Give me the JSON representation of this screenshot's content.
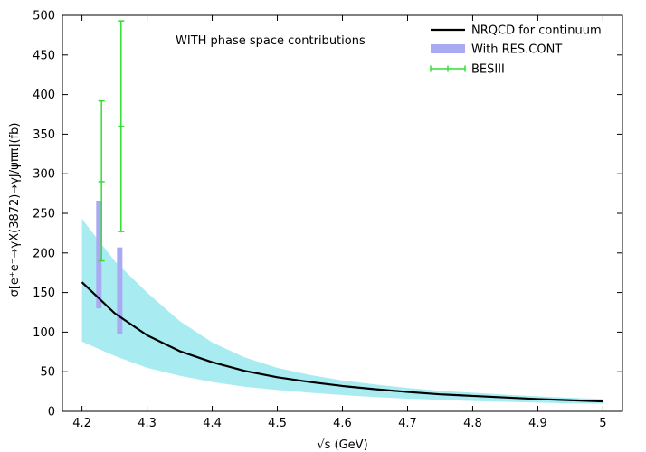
{
  "chart_data": {
    "type": "line",
    "title": "",
    "annotation": "WITH phase space contributions",
    "xlabel": "√s (GeV)",
    "ylabel": "σ[e⁺e⁻→γX(3872)→γJ/ψππ](fb)",
    "xlim": [
      4.17,
      5.03
    ],
    "ylim": [
      0,
      500
    ],
    "x_ticks": [
      4.2,
      4.3,
      4.4,
      4.5,
      4.6,
      4.7,
      4.8,
      4.9,
      5
    ],
    "x_tick_labels": [
      "4.2",
      "4.3",
      "4.4",
      "4.5",
      "4.6",
      "4.7",
      "4.8",
      "4.9",
      "5"
    ],
    "y_ticks": [
      0,
      50,
      100,
      150,
      200,
      250,
      300,
      350,
      400,
      450,
      500
    ],
    "y_tick_labels": [
      "0",
      "50",
      "100",
      "150",
      "200",
      "250",
      "300",
      "350",
      "400",
      "450",
      "500"
    ],
    "grid": false,
    "legend_position": "top-right",
    "series": [
      {
        "name": "NRQCD for continuum",
        "kind": "line",
        "color": "#000000",
        "x": [
          4.2,
          4.25,
          4.3,
          4.35,
          4.4,
          4.45,
          4.5,
          4.55,
          4.6,
          4.65,
          4.7,
          4.75,
          4.8,
          4.85,
          4.9,
          4.95,
          5.0
        ],
        "y": [
          163,
          124,
          96,
          76,
          62,
          51,
          43,
          37,
          32,
          28,
          24.5,
          21.5,
          19.5,
          17.5,
          15.5,
          14,
          12.5
        ]
      },
      {
        "name": "NRQCD uncertainty band",
        "kind": "band",
        "color": "#a8ecf2",
        "x": [
          4.2,
          4.25,
          4.3,
          4.35,
          4.4,
          4.45,
          4.5,
          4.55,
          4.6,
          4.65,
          4.7,
          4.75,
          4.8,
          4.85,
          4.9,
          4.95,
          5.0
        ],
        "upper": [
          243,
          190,
          150,
          114,
          87,
          68,
          55,
          46,
          39,
          34,
          29.5,
          26,
          23.5,
          21,
          19,
          17,
          15.5
        ],
        "lower": [
          88,
          70,
          55,
          45,
          37,
          31,
          27,
          23.5,
          20.5,
          18,
          16,
          14.5,
          13,
          12,
          11,
          10,
          9.5
        ]
      },
      {
        "name": "With RES.CONT",
        "kind": "bar",
        "color": "#aaaaf2",
        "x": [
          4.226,
          4.258
        ],
        "low": [
          130,
          98
        ],
        "high": [
          266,
          207
        ]
      },
      {
        "name": "BESIII",
        "kind": "errorbar",
        "color": "#33dd33",
        "x": [
          4.23,
          4.26
        ],
        "y": [
          290,
          360
        ],
        "err_low": [
          190,
          227
        ],
        "err_high": [
          392,
          493
        ]
      }
    ]
  }
}
